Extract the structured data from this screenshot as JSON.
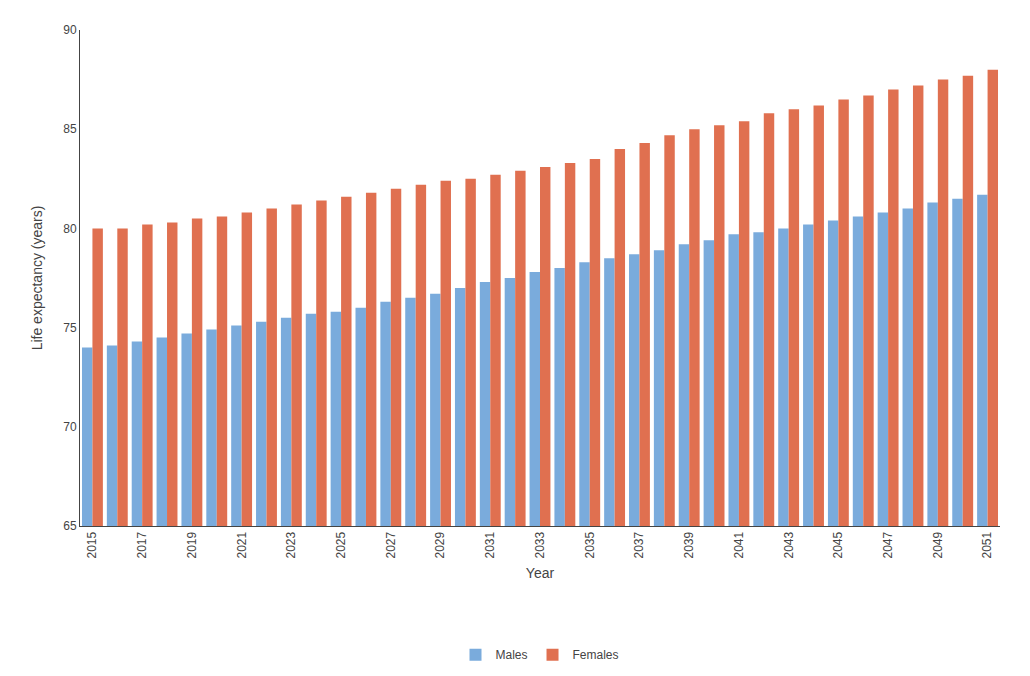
{
  "chart_data": {
    "type": "bar",
    "xlabel": "Year",
    "ylabel": "Life expectancy (years)",
    "categories": [
      "2015",
      null,
      "2017",
      null,
      "2019",
      null,
      "2021",
      null,
      "2023",
      null,
      "2025",
      null,
      "2027",
      null,
      "2029",
      null,
      "2031",
      null,
      "2033",
      null,
      "2035",
      null,
      "2037",
      null,
      "2039",
      null,
      "2041",
      null,
      "2043",
      null,
      "2045",
      null,
      "2047",
      null,
      "2049",
      null,
      "2051"
    ],
    "series": [
      {
        "name": "Males",
        "color": "#7aabdc",
        "values": [
          74.0,
          74.1,
          74.3,
          74.5,
          74.7,
          74.9,
          75.1,
          75.3,
          75.5,
          75.7,
          75.8,
          76.0,
          76.3,
          76.5,
          76.7,
          77.0,
          77.3,
          77.5,
          77.8,
          78.0,
          78.3,
          78.5,
          78.7,
          78.9,
          79.2,
          79.4,
          79.7,
          79.8,
          80.0,
          80.2,
          80.4,
          80.6,
          80.8,
          81.0,
          81.3,
          81.5,
          81.7
        ]
      },
      {
        "name": "Females",
        "color": "#e07050",
        "values": [
          80.0,
          80.0,
          80.2,
          80.3,
          80.5,
          80.6,
          80.8,
          81.0,
          81.2,
          81.4,
          81.6,
          81.8,
          82.0,
          82.2,
          82.4,
          82.5,
          82.7,
          82.9,
          83.1,
          83.3,
          83.5,
          84.0,
          84.3,
          84.7,
          85.0,
          85.2,
          85.4,
          85.8,
          86.0,
          86.2,
          86.5,
          86.7,
          87.0,
          87.2,
          87.5,
          87.7,
          88.0
        ]
      }
    ],
    "ylim": [
      65,
      90
    ],
    "yticks": [
      65,
      70,
      75,
      80,
      85,
      90
    ],
    "grid": false,
    "legend": "bottom"
  }
}
